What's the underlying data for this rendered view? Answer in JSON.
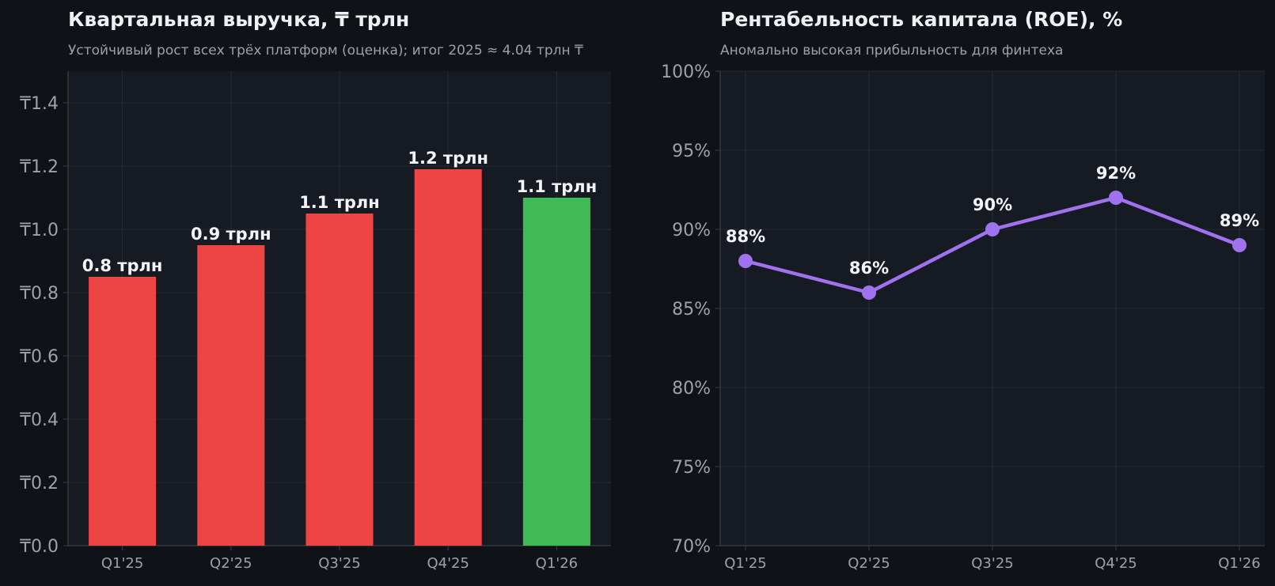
{
  "charts": [
    {
      "title": "Квартальная выручка, ₸ трлн",
      "subtitle": "Устойчивый рост всех трёх платформ (оценка); итог 2025 ≈ 4.04 трлн ₸"
    },
    {
      "title": "Рентабельность капитала (ROE), %",
      "subtitle": "Аномально высокая прибыльность для финтеха"
    }
  ],
  "chart_data": [
    {
      "type": "bar",
      "title": "Квартальная выручка, ₸ трлн",
      "subtitle": "Устойчивый рост всех трёх платформ (оценка); итог 2025 ≈ 4.04 трлн ₸",
      "categories": [
        "Q1'25",
        "Q2'25",
        "Q3'25",
        "Q4'25",
        "Q1'26"
      ],
      "values": [
        0.85,
        0.95,
        1.05,
        1.19,
        1.1
      ],
      "data_labels": [
        "0.8 трлн",
        "0.9 трлн",
        "1.1 трлн",
        "1.2 трлн",
        "1.1 трлн"
      ],
      "bar_colors": [
        "#ef4444",
        "#ef4444",
        "#ef4444",
        "#ef4444",
        "#3fba55"
      ],
      "ylim": [
        0,
        1.5
      ],
      "yticks": [
        0,
        0.2,
        0.4,
        0.6,
        0.8,
        1.0,
        1.2,
        1.4
      ],
      "ytick_labels": [
        "₸0.0",
        "₸0.2",
        "₸0.4",
        "₸0.6",
        "₸0.8",
        "₸1.0",
        "₸1.2",
        "₸1.4"
      ],
      "grid": true
    },
    {
      "type": "line",
      "title": "Рентабельность капитала (ROE), %",
      "subtitle": "Аномально высокая прибыльность для финтеха",
      "categories": [
        "Q1'25",
        "Q2'25",
        "Q3'25",
        "Q4'25",
        "Q1'26"
      ],
      "values": [
        88,
        86,
        90,
        92,
        89
      ],
      "data_labels": [
        "88%",
        "86%",
        "90%",
        "92%",
        "89%"
      ],
      "line_color": "#a072f0",
      "ylim": [
        70,
        100
      ],
      "yticks": [
        70,
        75,
        80,
        85,
        90,
        95,
        100
      ],
      "ytick_labels": [
        "70%",
        "75%",
        "80%",
        "85%",
        "90%",
        "95%",
        "100%"
      ],
      "grid": true
    }
  ],
  "colors": {
    "page_bg": "#0f1318",
    "plot_bg": "#161a22",
    "grid": "#262b34",
    "axis": "#3a3f48"
  }
}
